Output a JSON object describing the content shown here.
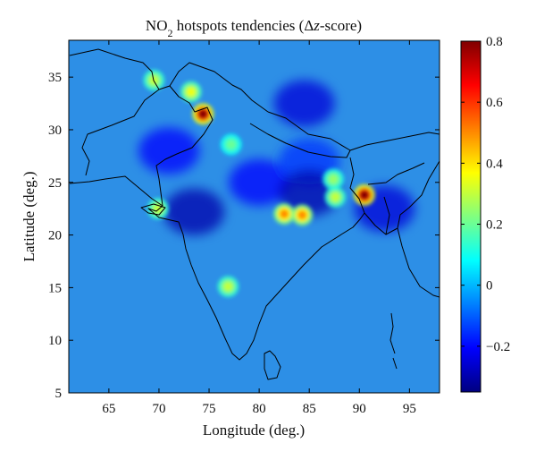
{
  "figure": {
    "title_prefix": "NO",
    "title_subscript": "2",
    "title_suffix": " hotspots tendencies (Δ",
    "title_var": "z",
    "title_end": "-score)",
    "xlabel": "Longitude (deg.)",
    "ylabel": "Latitude (deg.)"
  },
  "map": {
    "x_range": [
      61,
      98
    ],
    "y_range": [
      5,
      38.5
    ],
    "x_ticks": [
      "65",
      "70",
      "75",
      "80",
      "85",
      "90",
      "95"
    ],
    "y_ticks": [
      "5",
      "10",
      "15",
      "20",
      "25",
      "30",
      "35"
    ],
    "background_color": "#2d8fe6",
    "hotspots": [
      {
        "lon": 74.4,
        "lat": 31.5,
        "value": 0.8
      },
      {
        "lon": 90.5,
        "lat": 23.8,
        "value": 0.8
      },
      {
        "lon": 82.5,
        "lat": 22.0,
        "value": 0.5
      },
      {
        "lon": 84.3,
        "lat": 21.9,
        "value": 0.5
      },
      {
        "lon": 73.2,
        "lat": 33.6,
        "value": 0.35
      },
      {
        "lon": 69.5,
        "lat": 34.7,
        "value": 0.3
      },
      {
        "lon": 87.6,
        "lat": 23.6,
        "value": 0.3
      },
      {
        "lon": 87.4,
        "lat": 25.3,
        "value": 0.25
      },
      {
        "lon": 69.9,
        "lat": 22.5,
        "value": 0.3
      },
      {
        "lon": 77.2,
        "lat": 28.6,
        "value": 0.2
      },
      {
        "lon": 76.9,
        "lat": 15.1,
        "value": 0.3
      }
    ],
    "lows": [
      {
        "lon": 71.0,
        "lat": 28.0,
        "value": -0.2
      },
      {
        "lon": 80.0,
        "lat": 25.0,
        "value": -0.2
      },
      {
        "lon": 85.0,
        "lat": 27.0,
        "value": -0.15
      },
      {
        "lon": 84.5,
        "lat": 32.5,
        "value": -0.25
      },
      {
        "lon": 92.5,
        "lat": 22.5,
        "value": -0.25
      },
      {
        "lon": 85.0,
        "lat": 24.0,
        "value": -0.3
      },
      {
        "lon": 73.5,
        "lat": 22.2,
        "value": -0.3
      }
    ]
  },
  "colorbar": {
    "range": [
      -0.35,
      0.8
    ],
    "ticks": [
      {
        "value": 0.8,
        "label": "0.8"
      },
      {
        "value": 0.6,
        "label": "0.6"
      },
      {
        "value": 0.4,
        "label": "0.4"
      },
      {
        "value": 0.2,
        "label": "0.2"
      },
      {
        "value": 0.0,
        "label": "0"
      },
      {
        "value": -0.2,
        "label": "−0.2"
      }
    ],
    "stops": [
      "#000080",
      "#0000ff",
      "#0080ff",
      "#00ffff",
      "#80ff80",
      "#ffff00",
      "#ff8000",
      "#ff0000",
      "#800000"
    ]
  }
}
